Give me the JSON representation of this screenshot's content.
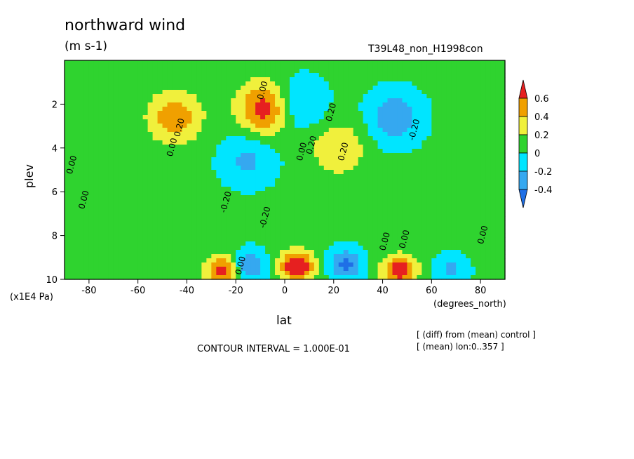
{
  "chart_data": {
    "type": "heatmap",
    "title": "northward wind",
    "units": "(m s-1)",
    "experiment": "T39L48_non_H1998con",
    "xlabel": "lat",
    "x_unit_label": "(degrees_north)",
    "ylabel": "plev",
    "y_unit_label": "(x1E4 Pa)",
    "xlim": [
      -90,
      90
    ],
    "ylim": [
      10,
      0
    ],
    "x_ticks": [
      -80,
      -60,
      -40,
      -20,
      0,
      20,
      40,
      60,
      80
    ],
    "x_tick_labels": [
      "-80",
      "-60",
      "-40",
      "-20",
      "0",
      "20",
      "40",
      "60",
      "80"
    ],
    "y_ticks": [
      2,
      4,
      6,
      8,
      10
    ],
    "y_tick_labels": [
      "2",
      "4",
      "6",
      "8",
      "10"
    ],
    "colorbar": {
      "levels": [
        -0.4,
        -0.2,
        0,
        0.2,
        0.4,
        0.6
      ],
      "labels": [
        "-0.4",
        "-0.2",
        "0",
        "0.2",
        "0.4",
        "0.6"
      ],
      "colors": [
        "#1f6fe6",
        "#35a8f0",
        "#00e5ff",
        "#2fd32f",
        "#f0f03c",
        "#f0a000",
        "#e62020"
      ]
    },
    "contour_interval": 0.1,
    "features": [
      {
        "lat": -45,
        "plev": 2.6,
        "value": 0.5
      },
      {
        "lat": -8,
        "plev": 2.2,
        "value": 0.7
      },
      {
        "lat": 22,
        "plev": 4.0,
        "value": 0.35
      },
      {
        "lat": 45,
        "plev": 2.6,
        "value": -0.4
      },
      {
        "lat": 5,
        "plev": 2.0,
        "value": -0.35
      },
      {
        "lat": -15,
        "plev": 4.5,
        "value": -0.3
      },
      {
        "lat": -25,
        "plev": 9.6,
        "value": 0.7
      },
      {
        "lat": 5,
        "plev": 9.4,
        "value": 0.8
      },
      {
        "lat": 47,
        "plev": 9.6,
        "value": 0.7
      },
      {
        "lat": -15,
        "plev": 9.4,
        "value": -0.5
      },
      {
        "lat": 25,
        "plev": 9.3,
        "value": -0.5
      },
      {
        "lat": 68,
        "plev": 9.6,
        "value": -0.3
      }
    ],
    "contour_labels": [
      {
        "text": "0.00",
        "lat": -8,
        "plev": 1.4
      },
      {
        "text": "0.20",
        "lat": 20,
        "plev": 2.4
      },
      {
        "text": "0.20",
        "lat": -42,
        "plev": 3.1
      },
      {
        "text": "0.00",
        "lat": -45,
        "plev": 4.0
      },
      {
        "text": "-0.20",
        "lat": 54,
        "plev": 3.2
      },
      {
        "text": "0.00",
        "lat": -86,
        "plev": 4.8
      },
      {
        "text": "0.20",
        "lat": 25,
        "plev": 4.2
      },
      {
        "text": "0.00",
        "lat": 8,
        "plev": 4.2
      },
      {
        "text": "0.20",
        "lat": 12,
        "plev": 3.9
      },
      {
        "text": "0.00",
        "lat": -81,
        "plev": 6.4
      },
      {
        "text": "-0.20",
        "lat": -23,
        "plev": 6.5
      },
      {
        "text": "-0.20",
        "lat": -7,
        "plev": 7.2
      },
      {
        "text": "0.00",
        "lat": 42,
        "plev": 8.3
      },
      {
        "text": "0.00",
        "lat": 50,
        "plev": 8.2
      },
      {
        "text": "0.00",
        "lat": 82,
        "plev": 8.0
      },
      {
        "text": "0.00",
        "lat": -17,
        "plev": 9.4
      }
    ]
  },
  "footer": {
    "contour_interval": "CONTOUR INTERVAL = 1.000E-01",
    "diff_note": "[ (diff) from (mean) control ]",
    "mean_note": "[ (mean) lon:0..357 ]"
  }
}
